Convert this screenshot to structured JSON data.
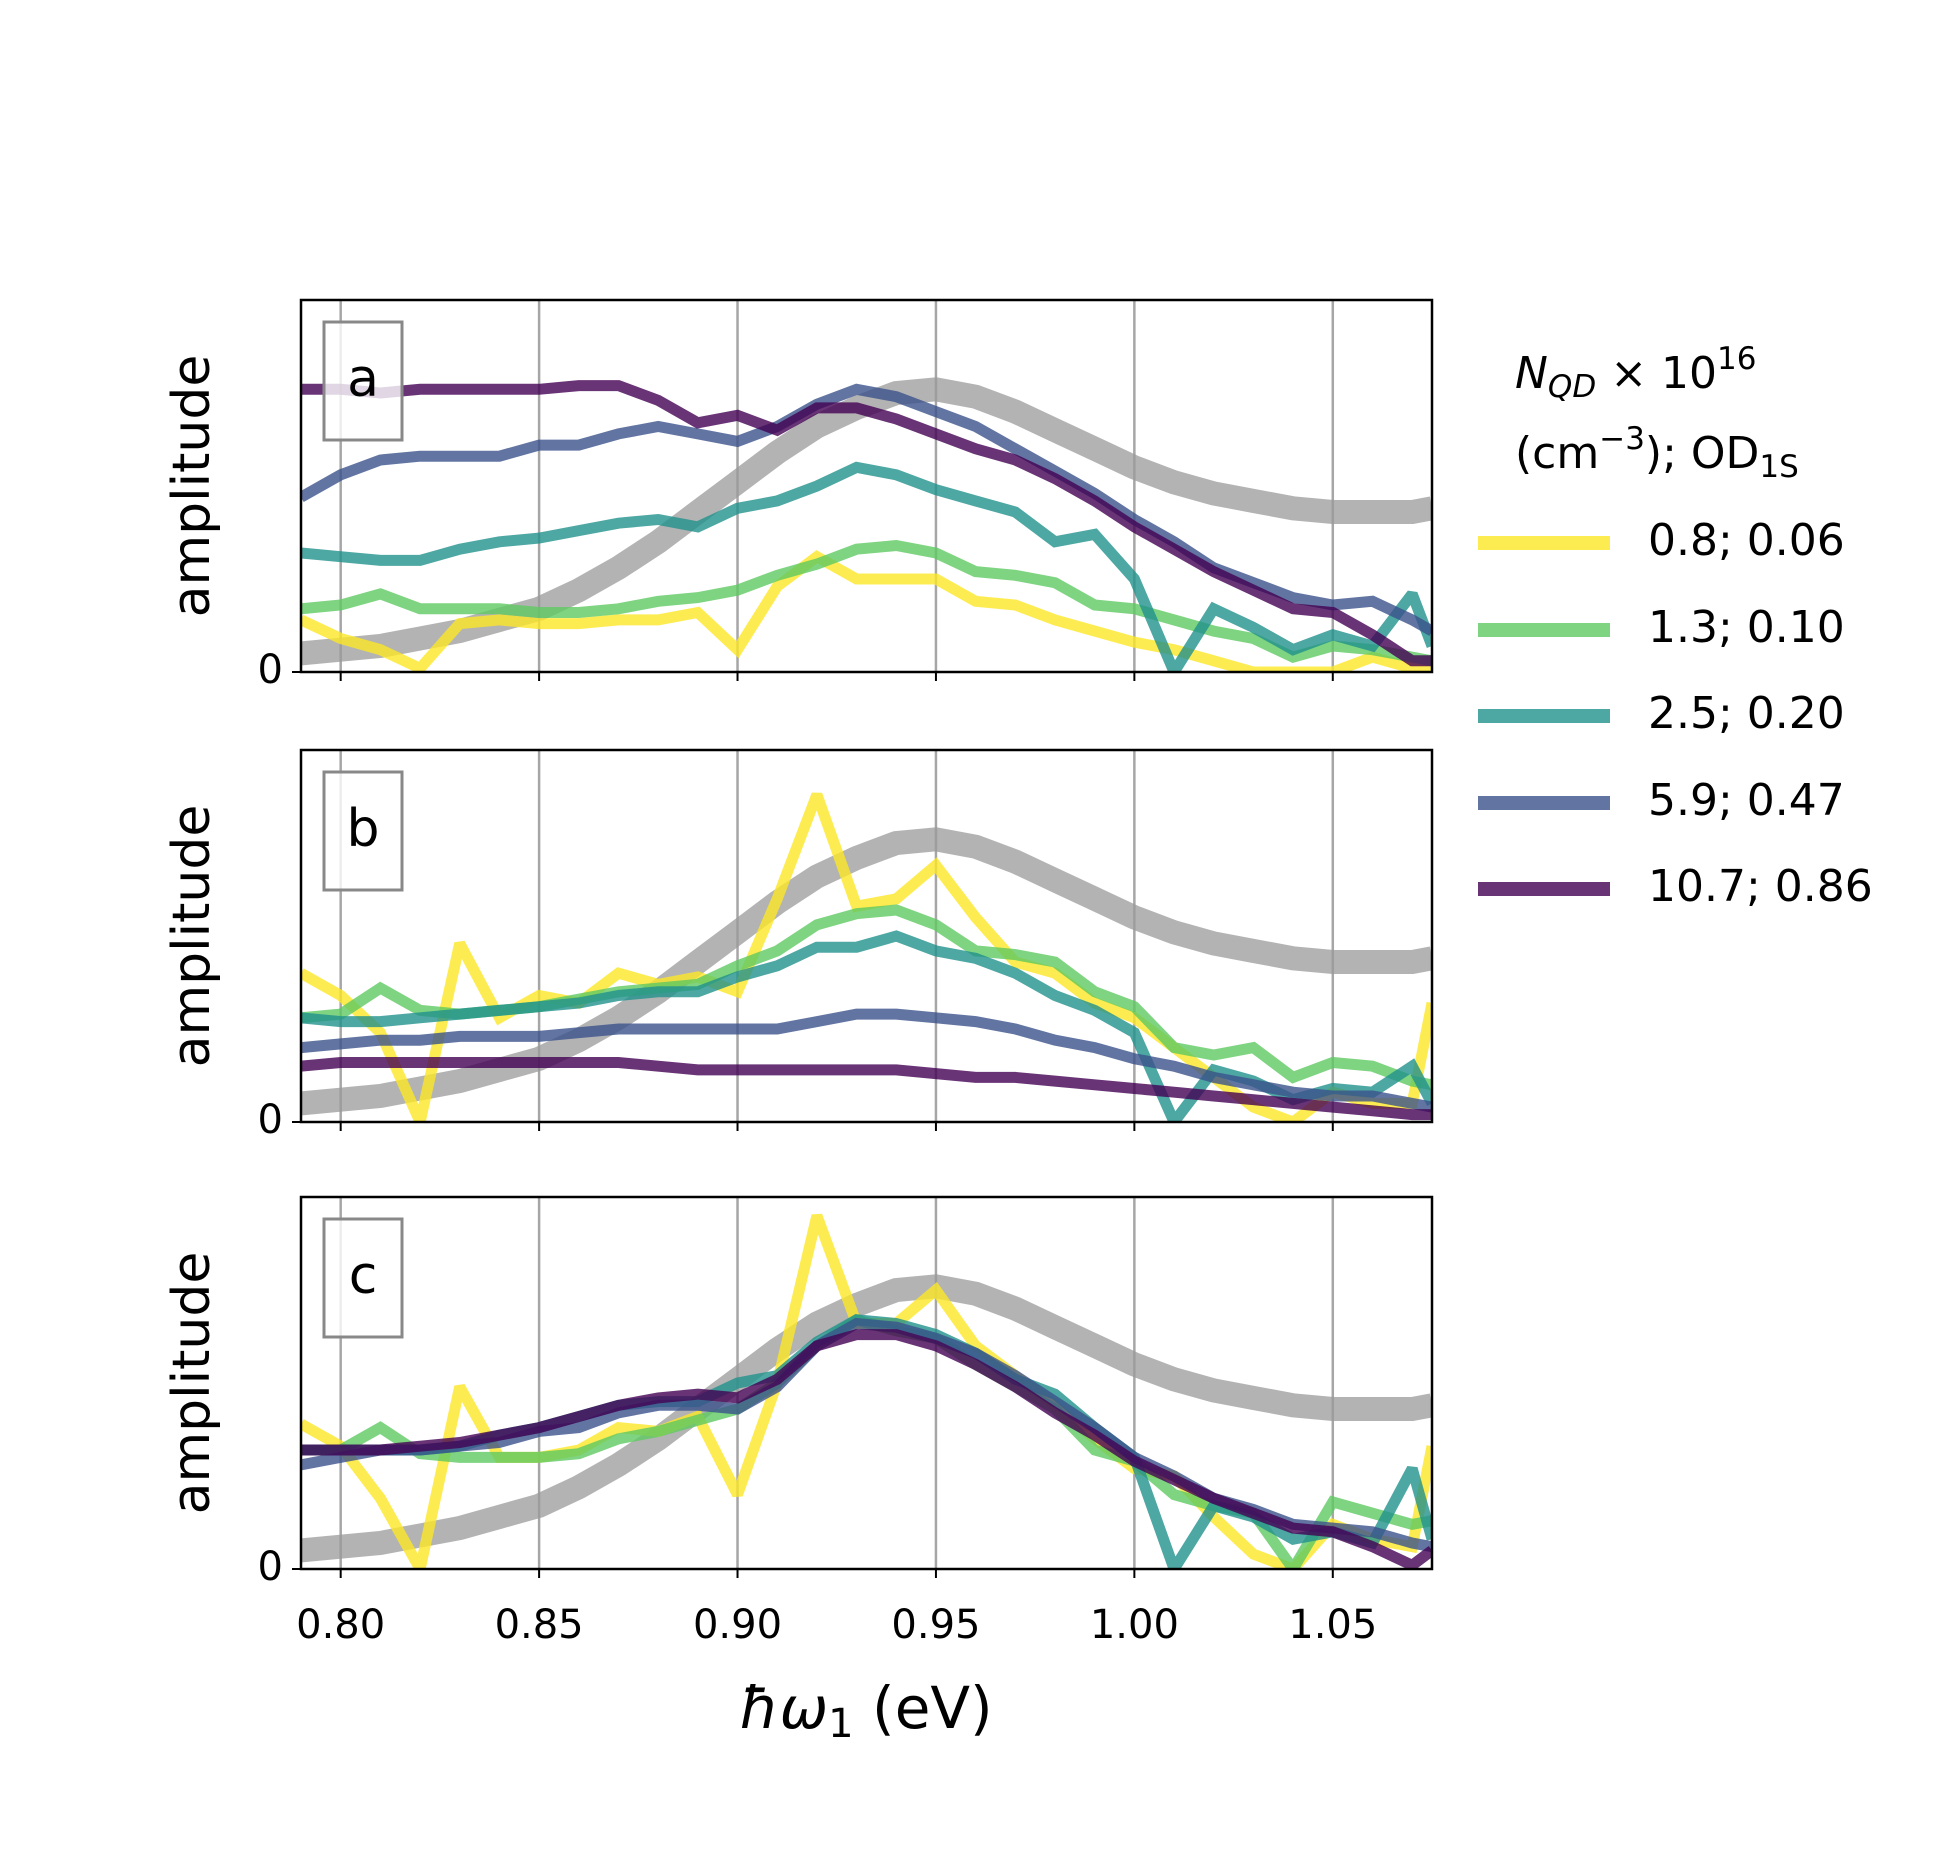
{
  "chart_data": [
    {
      "type": "line",
      "panel_label": "a",
      "ylabel": "amplitude",
      "legend_title": [
        "N",
        "QD",
        " × 10",
        "16",
        "(cm",
        "−3",
        "); OD",
        "1S"
      ],
      "x": [
        0.79,
        0.8,
        0.81,
        0.82,
        0.83,
        0.84,
        0.85,
        0.86,
        0.87,
        0.88,
        0.89,
        0.9,
        0.91,
        0.92,
        0.93,
        0.94,
        0.95,
        0.96,
        0.97,
        0.98,
        0.99,
        1.0,
        1.01,
        1.02,
        1.03,
        1.04,
        1.05,
        1.06,
        1.07,
        1.075
      ],
      "xlim": [
        0.79,
        1.075
      ],
      "xticks": [
        0.8,
        0.85,
        0.9,
        0.95,
        1.0,
        1.05
      ],
      "ylim": [
        0,
        1
      ],
      "yticks": [
        0
      ],
      "grid": true,
      "reference": {
        "color": "#999999",
        "values": [
          0.05,
          0.06,
          0.07,
          0.09,
          0.11,
          0.14,
          0.17,
          0.22,
          0.28,
          0.35,
          0.43,
          0.51,
          0.59,
          0.66,
          0.71,
          0.75,
          0.76,
          0.74,
          0.7,
          0.65,
          0.6,
          0.55,
          0.51,
          0.48,
          0.46,
          0.44,
          0.43,
          0.43,
          0.43,
          0.44
        ]
      },
      "series": [
        {
          "name": "0.8; 0.06",
          "color": "#fde725",
          "values": [
            0.14,
            0.09,
            0.06,
            0.01,
            0.13,
            0.14,
            0.13,
            0.13,
            0.14,
            0.14,
            0.16,
            0.06,
            0.23,
            0.31,
            0.25,
            0.25,
            0.25,
            0.19,
            0.18,
            0.14,
            0.11,
            0.08,
            0.06,
            0.03,
            0,
            0,
            0,
            0.04,
            0.01,
            0
          ]
        },
        {
          "name": "1.3; 0.10",
          "color": "#5ec962",
          "values": [
            0.17,
            0.18,
            0.21,
            0.17,
            0.17,
            0.17,
            0.16,
            0.16,
            0.17,
            0.19,
            0.2,
            0.22,
            0.26,
            0.29,
            0.33,
            0.34,
            0.32,
            0.27,
            0.26,
            0.24,
            0.18,
            0.17,
            0.14,
            0.11,
            0.09,
            0.04,
            0.07,
            0.06,
            0.04,
            0.03
          ]
        },
        {
          "name": "2.5; 0.20",
          "color": "#21918c",
          "values": [
            0.32,
            0.31,
            0.3,
            0.3,
            0.33,
            0.35,
            0.36,
            0.38,
            0.4,
            0.41,
            0.39,
            0.44,
            0.46,
            0.5,
            0.55,
            0.53,
            0.49,
            0.46,
            0.43,
            0.35,
            0.37,
            0.25,
            0,
            0.17,
            0.12,
            0.06,
            0.1,
            0.07,
            0.21,
            0.07
          ]
        },
        {
          "name": "5.9; 0.47",
          "color": "#3b528b",
          "values": [
            0.47,
            0.53,
            0.57,
            0.58,
            0.58,
            0.58,
            0.61,
            0.61,
            0.64,
            0.66,
            0.64,
            0.62,
            0.66,
            0.72,
            0.76,
            0.74,
            0.7,
            0.66,
            0.6,
            0.54,
            0.48,
            0.41,
            0.35,
            0.28,
            0.24,
            0.2,
            0.18,
            0.19,
            0.14,
            0.11
          ]
        },
        {
          "name": "10.7; 0.86",
          "color": "#440154",
          "values": [
            0.76,
            0.76,
            0.75,
            0.76,
            0.76,
            0.76,
            0.76,
            0.77,
            0.77,
            0.73,
            0.67,
            0.69,
            0.65,
            0.71,
            0.71,
            0.68,
            0.64,
            0.6,
            0.57,
            0.52,
            0.46,
            0.39,
            0.33,
            0.27,
            0.22,
            0.17,
            0.16,
            0.1,
            0.03,
            0.03
          ]
        }
      ]
    },
    {
      "type": "line",
      "panel_label": "b",
      "ylabel": "amplitude",
      "x": [
        0.79,
        0.8,
        0.81,
        0.82,
        0.83,
        0.84,
        0.85,
        0.86,
        0.87,
        0.88,
        0.89,
        0.9,
        0.91,
        0.92,
        0.93,
        0.94,
        0.95,
        0.96,
        0.97,
        0.98,
        0.99,
        1.0,
        1.01,
        1.02,
        1.03,
        1.04,
        1.05,
        1.06,
        1.07,
        1.075
      ],
      "xlim": [
        0.79,
        1.075
      ],
      "xticks": [
        0.8,
        0.85,
        0.9,
        0.95,
        1.0,
        1.05
      ],
      "ylim": [
        0,
        1
      ],
      "yticks": [
        0
      ],
      "grid": true,
      "reference": {
        "color": "#999999",
        "values": [
          0.05,
          0.06,
          0.07,
          0.09,
          0.11,
          0.14,
          0.17,
          0.22,
          0.28,
          0.35,
          0.43,
          0.51,
          0.59,
          0.66,
          0.71,
          0.75,
          0.76,
          0.74,
          0.7,
          0.65,
          0.6,
          0.55,
          0.51,
          0.48,
          0.46,
          0.44,
          0.43,
          0.43,
          0.43,
          0.44
        ]
      },
      "series": [
        {
          "color": "#fde725",
          "values": [
            0.4,
            0.34,
            0.24,
            0,
            0.48,
            0.28,
            0.34,
            0.32,
            0.4,
            0.37,
            0.39,
            0.35,
            0.6,
            0.88,
            0.58,
            0.6,
            0.69,
            0.55,
            0.43,
            0.4,
            0.32,
            0.28,
            0.2,
            0.12,
            0.04,
            0,
            0.08,
            0.05,
            0.05,
            0.32
          ]
        },
        {
          "color": "#5ec962",
          "values": [
            0.28,
            0.29,
            0.36,
            0.3,
            0.29,
            0.3,
            0.31,
            0.33,
            0.35,
            0.36,
            0.37,
            0.42,
            0.46,
            0.53,
            0.56,
            0.57,
            0.53,
            0.46,
            0.45,
            0.43,
            0.35,
            0.31,
            0.2,
            0.18,
            0.2,
            0.12,
            0.16,
            0.15,
            0.11,
            0.1
          ]
        },
        {
          "color": "#21918c",
          "values": [
            0.28,
            0.27,
            0.27,
            0.28,
            0.29,
            0.3,
            0.31,
            0.32,
            0.34,
            0.35,
            0.35,
            0.39,
            0.42,
            0.47,
            0.47,
            0.5,
            0.46,
            0.44,
            0.4,
            0.34,
            0.3,
            0.24,
            0,
            0.14,
            0.11,
            0.06,
            0.09,
            0.08,
            0.15,
            0.05
          ]
        },
        {
          "color": "#3b528b",
          "values": [
            0.2,
            0.21,
            0.22,
            0.22,
            0.23,
            0.23,
            0.23,
            0.24,
            0.25,
            0.25,
            0.25,
            0.25,
            0.25,
            0.27,
            0.29,
            0.29,
            0.28,
            0.27,
            0.25,
            0.22,
            0.2,
            0.17,
            0.15,
            0.12,
            0.1,
            0.08,
            0.07,
            0.07,
            0.05,
            0.04
          ]
        },
        {
          "color": "#440154",
          "values": [
            0.15,
            0.16,
            0.16,
            0.16,
            0.16,
            0.16,
            0.16,
            0.16,
            0.16,
            0.15,
            0.14,
            0.14,
            0.14,
            0.14,
            0.14,
            0.14,
            0.13,
            0.12,
            0.12,
            0.11,
            0.1,
            0.09,
            0.08,
            0.07,
            0.06,
            0.05,
            0.04,
            0.03,
            0.02,
            0.02
          ]
        }
      ]
    },
    {
      "type": "line",
      "panel_label": "c",
      "ylabel": "amplitude",
      "xlabel": [
        "ħω",
        "1",
        " (eV)"
      ],
      "x": [
        0.79,
        0.8,
        0.81,
        0.82,
        0.83,
        0.84,
        0.85,
        0.86,
        0.87,
        0.88,
        0.89,
        0.9,
        0.91,
        0.92,
        0.93,
        0.94,
        0.95,
        0.96,
        0.97,
        0.98,
        0.99,
        1.0,
        1.01,
        1.02,
        1.03,
        1.04,
        1.05,
        1.06,
        1.07,
        1.075
      ],
      "xlim": [
        0.79,
        1.075
      ],
      "xticks": [
        {
          "value": 0.8,
          "label": "0.80"
        },
        {
          "value": 0.85,
          "label": "0.85"
        },
        {
          "value": 0.9,
          "label": "0.90"
        },
        {
          "value": 0.95,
          "label": "0.95"
        },
        {
          "value": 1.0,
          "label": "1.00"
        },
        {
          "value": 1.05,
          "label": "1.05"
        }
      ],
      "ylim": [
        0,
        1
      ],
      "yticks": [
        0
      ],
      "grid": true,
      "reference": {
        "color": "#999999",
        "values": [
          0.05,
          0.06,
          0.07,
          0.09,
          0.11,
          0.14,
          0.17,
          0.22,
          0.28,
          0.35,
          0.43,
          0.51,
          0.59,
          0.66,
          0.71,
          0.75,
          0.76,
          0.74,
          0.7,
          0.65,
          0.6,
          0.55,
          0.51,
          0.48,
          0.46,
          0.44,
          0.43,
          0.43,
          0.43,
          0.44
        ]
      },
      "series": [
        {
          "color": "#fde725",
          "values": [
            0.39,
            0.33,
            0.19,
            0,
            0.49,
            0.3,
            0.3,
            0.32,
            0.38,
            0.37,
            0.41,
            0.2,
            0.5,
            0.95,
            0.66,
            0.66,
            0.75,
            0.6,
            0.52,
            0.44,
            0.35,
            0.27,
            0.25,
            0.14,
            0.04,
            0,
            0.12,
            0.08,
            0.06,
            0.33
          ]
        },
        {
          "color": "#5ec962",
          "values": [
            0.32,
            0.32,
            0.38,
            0.31,
            0.3,
            0.3,
            0.3,
            0.31,
            0.35,
            0.37,
            0.4,
            0.43,
            0.5,
            0.6,
            0.67,
            0.64,
            0.62,
            0.55,
            0.49,
            0.43,
            0.32,
            0.29,
            0.2,
            0.17,
            0.15,
            0,
            0.18,
            0.15,
            0.12,
            0.13
          ]
        },
        {
          "color": "#21918c",
          "values": [
            0.32,
            0.32,
            0.32,
            0.32,
            0.33,
            0.36,
            0.38,
            0.41,
            0.44,
            0.45,
            0.45,
            0.5,
            0.52,
            0.61,
            0.67,
            0.66,
            0.63,
            0.58,
            0.51,
            0.47,
            0.38,
            0.3,
            0,
            0.17,
            0.14,
            0.08,
            0.1,
            0.07,
            0.27,
            0.08
          ]
        },
        {
          "color": "#3b528b",
          "values": [
            0.28,
            0.3,
            0.32,
            0.32,
            0.33,
            0.34,
            0.37,
            0.38,
            0.42,
            0.44,
            0.44,
            0.43,
            0.49,
            0.6,
            0.66,
            0.65,
            0.62,
            0.58,
            0.52,
            0.45,
            0.38,
            0.3,
            0.25,
            0.19,
            0.16,
            0.12,
            0.11,
            0.1,
            0.07,
            0.06
          ]
        },
        {
          "color": "#440154",
          "values": [
            0.32,
            0.32,
            0.32,
            0.33,
            0.34,
            0.36,
            0.38,
            0.41,
            0.44,
            0.46,
            0.47,
            0.46,
            0.51,
            0.6,
            0.63,
            0.63,
            0.6,
            0.55,
            0.49,
            0.42,
            0.36,
            0.29,
            0.24,
            0.19,
            0.15,
            0.11,
            0.1,
            0.06,
            0.01,
            0.05
          ]
        }
      ]
    }
  ]
}
